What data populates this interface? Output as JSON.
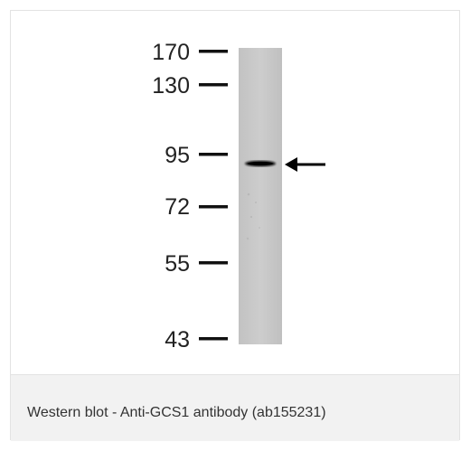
{
  "figure": {
    "caption": "Western blot - Anti-GCS1 antibody (ab155231)"
  },
  "blot": {
    "lane_color": "#c8c8c8",
    "band_color": "#111111",
    "markers": [
      {
        "label": "170"
      },
      {
        "label": "130"
      },
      {
        "label": "95"
      },
      {
        "label": "72"
      },
      {
        "label": "55"
      },
      {
        "label": "43"
      }
    ]
  }
}
